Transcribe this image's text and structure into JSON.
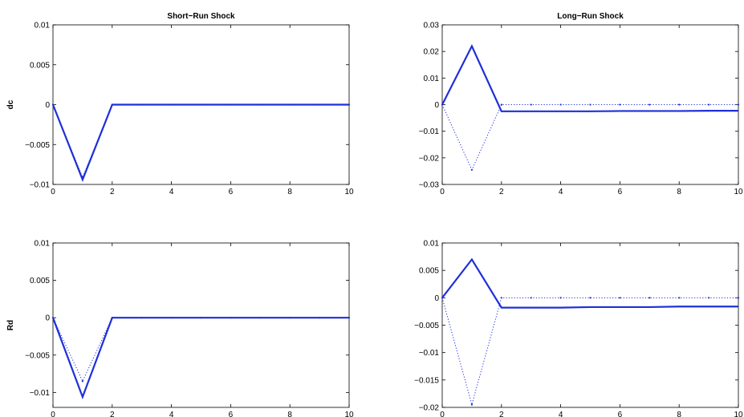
{
  "colors": {
    "line": "#1f2fd8",
    "axis": "#000000",
    "background": "#ffffff"
  },
  "chart_data": [
    {
      "type": "line",
      "title": "Short−Run Shock",
      "ylabel": "dc",
      "xlim": [
        0,
        10
      ],
      "ylim": [
        -0.01,
        0.01
      ],
      "xticks": [
        0,
        2,
        4,
        6,
        8,
        10
      ],
      "xtick_labels": [
        "0",
        "2",
        "4",
        "6",
        "8",
        "10"
      ],
      "yticks": [
        -0.01,
        -0.005,
        0,
        0.005,
        0.01
      ],
      "ytick_labels": [
        "−0.01",
        "−0.005",
        "0",
        "0.005",
        "0.01"
      ],
      "grid": false,
      "x": [
        0,
        1,
        2,
        3,
        4,
        5,
        6,
        7,
        8,
        9,
        10
      ],
      "series": [
        {
          "style": "solid",
          "values": [
            0,
            -0.0094,
            0,
            0,
            0,
            0,
            0,
            0,
            0,
            0,
            0
          ]
        },
        {
          "style": "dotted",
          "values": [
            0,
            -0.0091,
            0,
            0,
            0,
            0,
            0,
            0,
            0,
            0,
            0
          ]
        }
      ]
    },
    {
      "type": "line",
      "title": "Long−Run Shock",
      "ylabel": "",
      "xlim": [
        0,
        10
      ],
      "ylim": [
        -0.03,
        0.03
      ],
      "xticks": [
        0,
        2,
        4,
        6,
        8,
        10
      ],
      "xtick_labels": [
        "0",
        "2",
        "4",
        "6",
        "8",
        "10"
      ],
      "yticks": [
        -0.03,
        -0.02,
        -0.01,
        0,
        0.01,
        0.02,
        0.03
      ],
      "ytick_labels": [
        "−0.03",
        "−0.02",
        "−0.01",
        "0",
        "0.01",
        "0.02",
        "0.03"
      ],
      "grid": false,
      "x": [
        0,
        1,
        2,
        3,
        4,
        5,
        6,
        7,
        8,
        9,
        10
      ],
      "series": [
        {
          "style": "solid",
          "values": [
            0,
            0.022,
            -0.0025,
            -0.0025,
            -0.0025,
            -0.0025,
            -0.0024,
            -0.0024,
            -0.0024,
            -0.0023,
            -0.0023
          ]
        },
        {
          "style": "dotted",
          "values": [
            0,
            -0.0245,
            0,
            0,
            0,
            0,
            0,
            0,
            0,
            0,
            0
          ]
        }
      ]
    },
    {
      "type": "line",
      "title": "",
      "ylabel": "Rd",
      "xlim": [
        0,
        10
      ],
      "ylim": [
        -0.012,
        0.01
      ],
      "xticks": [
        0,
        2,
        4,
        6,
        8,
        10
      ],
      "xtick_labels": [
        "0",
        "2",
        "4",
        "6",
        "8",
        "10"
      ],
      "yticks": [
        -0.01,
        -0.005,
        0,
        0.005,
        0.01
      ],
      "ytick_labels": [
        "−0.01",
        "−0.005",
        "0",
        "0.005",
        "0.01"
      ],
      "grid": false,
      "x": [
        0,
        1,
        2,
        3,
        4,
        5,
        6,
        7,
        8,
        9,
        10
      ],
      "series": [
        {
          "style": "solid",
          "values": [
            0,
            -0.0106,
            0,
            0,
            0,
            0,
            0,
            0,
            0,
            0,
            0
          ]
        },
        {
          "style": "dotted",
          "values": [
            0,
            -0.0085,
            0,
            0,
            0,
            0,
            0,
            0,
            0,
            0,
            0
          ]
        }
      ]
    },
    {
      "type": "line",
      "title": "",
      "ylabel": "",
      "xlim": [
        0,
        10
      ],
      "ylim": [
        -0.02,
        0.01
      ],
      "xticks": [
        0,
        2,
        4,
        6,
        8,
        10
      ],
      "xtick_labels": [
        "0",
        "2",
        "4",
        "6",
        "8",
        "10"
      ],
      "yticks": [
        -0.02,
        -0.015,
        -0.01,
        -0.005,
        0,
        0.005,
        0.01
      ],
      "ytick_labels": [
        "−0.02",
        "−0.015",
        "−0.01",
        "−0.005",
        "0",
        "0.005",
        "0.01"
      ],
      "grid": false,
      "x": [
        0,
        1,
        2,
        3,
        4,
        5,
        6,
        7,
        8,
        9,
        10
      ],
      "series": [
        {
          "style": "solid",
          "values": [
            0,
            0.007,
            -0.0018,
            -0.0018,
            -0.0018,
            -0.0017,
            -0.0017,
            -0.0017,
            -0.0016,
            -0.0016,
            -0.0016
          ]
        },
        {
          "style": "dotted",
          "values": [
            0,
            -0.0195,
            0,
            0,
            0,
            0,
            0,
            0,
            0,
            0,
            0
          ]
        }
      ]
    }
  ]
}
